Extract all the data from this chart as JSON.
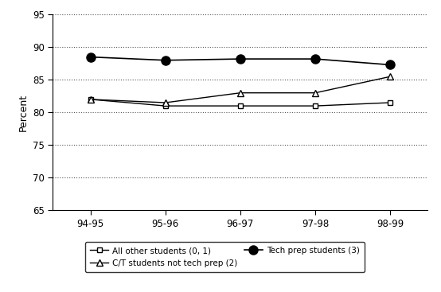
{
  "x_labels": [
    "94-95",
    "95-96",
    "96-97",
    "97-98",
    "98-99"
  ],
  "x_values": [
    0,
    1,
    2,
    3,
    4
  ],
  "series": [
    {
      "label": "All other students (0, 1)",
      "values": [
        82.0,
        81.0,
        81.0,
        81.0,
        81.5
      ],
      "marker": "s",
      "markersize": 5,
      "color": "#000000",
      "linewidth": 1.0,
      "fillstyle": "none"
    },
    {
      "label": "C/T students not tech prep (2)",
      "values": [
        82.0,
        81.5,
        83.0,
        83.0,
        85.5
      ],
      "marker": "^",
      "markersize": 6,
      "color": "#000000",
      "linewidth": 1.0,
      "fillstyle": "none"
    },
    {
      "label": "Tech prep students (3)",
      "values": [
        88.5,
        88.0,
        88.2,
        88.2,
        87.3
      ],
      "marker": "o",
      "markersize": 8,
      "color": "#000000",
      "linewidth": 1.2,
      "fillstyle": "full"
    }
  ],
  "legend_order": [
    0,
    2,
    1
  ],
  "legend_ncol": 2,
  "ylabel": "Percent",
  "ylim": [
    65,
    95
  ],
  "yticks": [
    65,
    70,
    75,
    80,
    85,
    90,
    95
  ],
  "grid_color": "#555555",
  "background_color": "#ffffff",
  "legend_fontsize": 7.5,
  "ylabel_fontsize": 9,
  "tick_fontsize": 8.5
}
